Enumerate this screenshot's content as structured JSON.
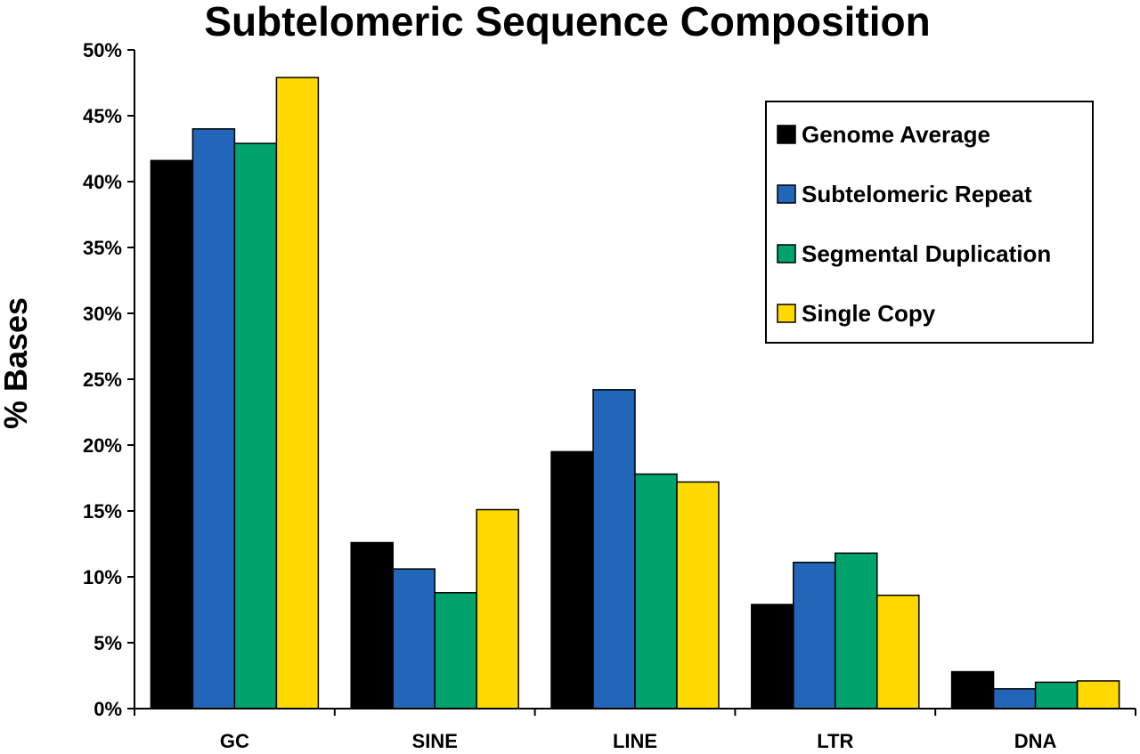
{
  "chart_data": {
    "type": "bar",
    "title": "Subtelomeric Sequence Composition",
    "xlabel": "",
    "ylabel": "% Bases",
    "ylim": [
      0,
      50
    ],
    "y_ticks": [
      "0%",
      "5%",
      "10%",
      "15%",
      "20%",
      "25%",
      "30%",
      "35%",
      "40%",
      "45%",
      "50%"
    ],
    "categories": [
      "GC",
      "SINE",
      "LINE",
      "LTR",
      "DNA"
    ],
    "series": [
      {
        "name": "Genome Average",
        "color": "#000000",
        "values": [
          41.6,
          12.6,
          19.5,
          7.9,
          2.8
        ]
      },
      {
        "name": "Subtelomeric Repeat",
        "color": "#2166b8",
        "values": [
          44.0,
          10.6,
          24.2,
          11.1,
          1.5
        ]
      },
      {
        "name": "Segmental Duplication",
        "color": "#00a36c",
        "values": [
          42.9,
          8.8,
          17.8,
          11.8,
          2.0
        ]
      },
      {
        "name": "Single Copy",
        "color": "#ffd900",
        "values": [
          47.9,
          15.1,
          17.2,
          8.6,
          2.1
        ]
      }
    ],
    "grid": false,
    "legend_position": "top-right"
  }
}
